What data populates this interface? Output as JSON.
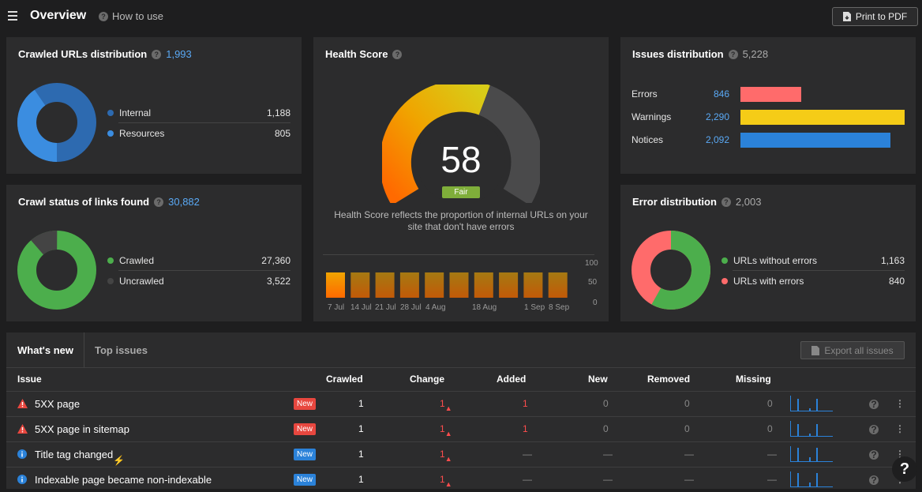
{
  "header": {
    "title": "Overview",
    "how_to_use": "How to use",
    "print": "Print to PDF"
  },
  "crawled": {
    "title": "Crawled URLs distribution",
    "total": "1,993",
    "items": [
      {
        "label": "Internal",
        "value": "1,188",
        "color": "#2d6ab0"
      },
      {
        "label": "Resources",
        "value": "805",
        "color": "#3b8de0"
      }
    ]
  },
  "status": {
    "title": "Crawl status of links found",
    "total": "30,882",
    "items": [
      {
        "label": "Crawled",
        "value": "27,360",
        "color": "#4cae4c"
      },
      {
        "label": "Uncrawled",
        "value": "3,522",
        "color": "#444"
      }
    ]
  },
  "health": {
    "title": "Health Score",
    "score": "58",
    "rating": "Fair",
    "desc": "Health Score reflects the proportion of internal URLs on your site that don't have errors",
    "xlabels": [
      "7 Jul",
      "14 Jul",
      "21 Jul",
      "28 Jul",
      "4 Aug",
      "18 Aug",
      "1 Sep",
      "8 Sep"
    ],
    "ylabels": [
      "100",
      "50",
      "0"
    ]
  },
  "issues": {
    "title": "Issues distribution",
    "total": "5,228",
    "rows": [
      {
        "label": "Errors",
        "value": "846",
        "color": "#ff6b6b",
        "pct": 0.37
      },
      {
        "label": "Warnings",
        "value": "2,290",
        "color": "#f5cc17",
        "pct": 1.0
      },
      {
        "label": "Notices",
        "value": "2,092",
        "color": "#2b82d9",
        "pct": 0.91
      }
    ]
  },
  "errordist": {
    "title": "Error distribution",
    "total": "2,003",
    "items": [
      {
        "label": "URLs without errors",
        "value": "1,163",
        "color": "#4cae4c"
      },
      {
        "label": "URLs with errors",
        "value": "840",
        "color": "#ff6b6b"
      }
    ]
  },
  "table": {
    "tabs": [
      "What's new",
      "Top issues"
    ],
    "export": "Export all issues",
    "headers": [
      "Issue",
      "Crawled",
      "Change",
      "Added",
      "New",
      "Removed",
      "Missing"
    ],
    "rows": [
      {
        "icon": "error-icon",
        "name": "5XX page",
        "badge": "New",
        "badge_color": "#e8473f",
        "crawled": "1",
        "change": "1",
        "added": "1",
        "new": "0",
        "removed": "0",
        "missing": "0"
      },
      {
        "icon": "error-icon",
        "name": "5XX page in sitemap",
        "badge": "New",
        "badge_color": "#e8473f",
        "crawled": "1",
        "change": "1",
        "added": "1",
        "new": "0",
        "removed": "0",
        "missing": "0"
      },
      {
        "icon": "info-icon",
        "name": "Title tag changed",
        "badge": "New",
        "badge_color": "#2b82d9",
        "crawled": "1",
        "change": "1",
        "added": "—",
        "new": "—",
        "removed": "—",
        "missing": "—"
      },
      {
        "icon": "info-icon",
        "name": "Indexable page became non-indexable",
        "badge": "New",
        "badge_color": "#2b82d9",
        "crawled": "1",
        "change": "1",
        "added": "—",
        "new": "—",
        "removed": "—",
        "missing": "—"
      }
    ]
  }
}
